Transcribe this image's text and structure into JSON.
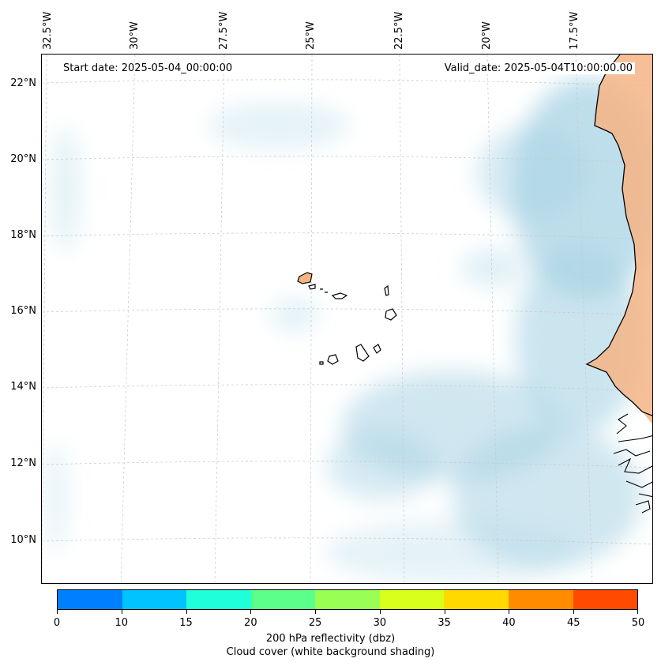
{
  "map": {
    "start_date": "Start date: 2025-05-04_00:00:00",
    "valid_date": "Valid_date: 2025-05-04T10:00:00.00",
    "lon_labels": [
      "32.5°W",
      "30°W",
      "27.5°W",
      "25°W",
      "22.5°W",
      "20°W",
      "17.5°W"
    ],
    "lat_labels": [
      "22°N",
      "20°N",
      "18°N",
      "16°N",
      "14°N",
      "12°N",
      "10°N"
    ],
    "region": "Cape Verde Islands and West African coast",
    "extent": {
      "lon_min": -33.0,
      "lon_max": -15.5,
      "lat_min": 8.9,
      "lat_max": 22.8
    }
  },
  "colorbar": {
    "ticks": [
      "0",
      "10",
      "15",
      "20",
      "25",
      "30",
      "35",
      "40",
      "45",
      "50"
    ],
    "colors": [
      "#007fff",
      "#00c3ff",
      "#1fffd9",
      "#5cff8a",
      "#99ff55",
      "#d9ff1c",
      "#ffd900",
      "#ff8c00",
      "#ff4a00"
    ],
    "label_line1": "200 hPa reflectivity (dbz)",
    "label_line2": "Cloud cover (white background shading)"
  },
  "style": {
    "cloud_color": "#a9d3e4",
    "land_color": "#f4b485",
    "coast_color": "#000000",
    "grid_color": "#cccccc"
  }
}
